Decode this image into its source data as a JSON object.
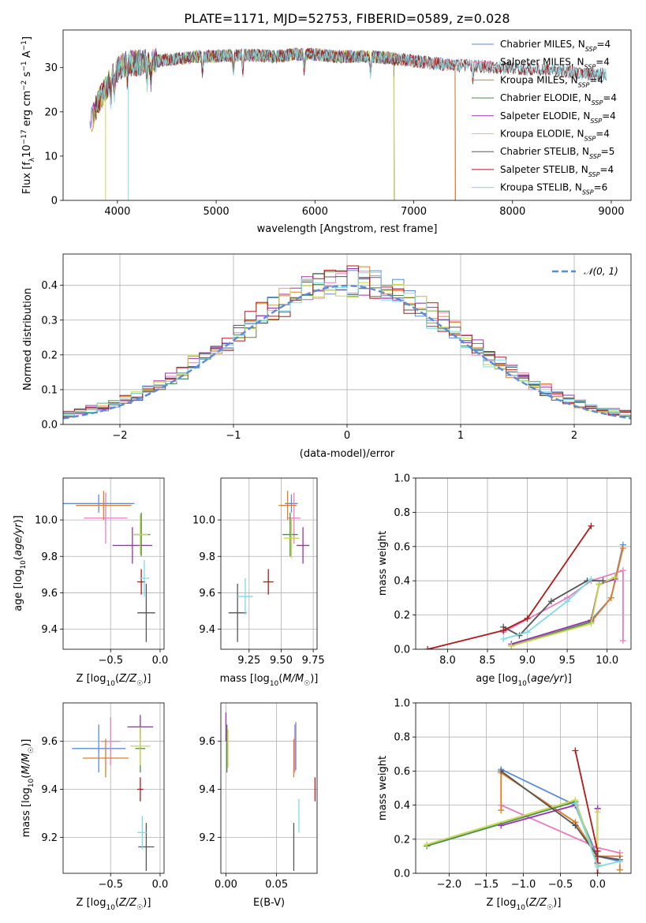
{
  "figure": {
    "title": "PLATE=1171, MJD=52753, FIBERID=0589, z=0.028"
  },
  "chart_data": [
    {
      "id": "spectrum",
      "type": "line",
      "xlabel": "wavelength [Angstrom, rest frame]",
      "ylabel": "Flux [f_λ 10^-17 erg cm^-2 s^-1 A^-1]",
      "xlim": [
        3450,
        9200
      ],
      "ylim": [
        0,
        38.5
      ],
      "xticks": [
        4000,
        5000,
        6000,
        7000,
        8000,
        9000
      ],
      "yticks": [
        0,
        10,
        20,
        30
      ],
      "grid": false,
      "legend_position": "top-right",
      "continuum": {
        "x": [
          3720,
          3800,
          3900,
          4000,
          4100,
          4200,
          4400,
          4600,
          4800,
          5000,
          5200,
          5400,
          5600,
          5800,
          6000,
          6200,
          6400,
          6600,
          6800,
          7000,
          7200,
          7400,
          7600,
          7800,
          8000,
          8200,
          8400,
          8600,
          8800,
          8950
        ],
        "y": [
          17,
          22,
          26,
          29.5,
          31,
          31,
          31.5,
          32,
          32.5,
          32.5,
          32.8,
          32.8,
          32.5,
          33,
          33,
          32.5,
          32.5,
          32.5,
          32,
          31.5,
          31,
          30.5,
          30.5,
          30,
          30,
          29.5,
          29.5,
          29,
          28.5,
          28.5
        ]
      },
      "series": [
        {
          "name": "Chabrier MILES, N_SSP=4",
          "color": "#5b8bd6",
          "xmax": 7420
        },
        {
          "name": "Salpeter MILES, N_SSP=4",
          "color": "#e87ec0",
          "xmax": 7420
        },
        {
          "name": "Kroupa MILES, N_SSP=4",
          "color": "#e07c24",
          "xmax": 7420
        },
        {
          "name": "Chabrier ELODIE, N_SSP=4",
          "color": "#4c8c4a",
          "xmax": 6800
        },
        {
          "name": "Salpeter ELODIE, N_SSP=4",
          "color": "#9b30b0",
          "xmax": 6800
        },
        {
          "name": "Kroupa ELODIE, N_SSP=4",
          "color": "#c6d84a",
          "xmax": 6800
        },
        {
          "name": "Chabrier STELIB, N_SSP=5",
          "color": "#555555",
          "xmax": 8950
        },
        {
          "name": "Salpeter STELIB, N_SSP=4",
          "color": "#b01a1a",
          "xmax": 8950
        },
        {
          "name": "Kroupa STELIB, N_SSP=6",
          "color": "#7fdae6",
          "xmax": 8950
        }
      ]
    },
    {
      "id": "residuals",
      "type": "histogram",
      "xlabel": "(data-model)/error",
      "ylabel": "Normed distribution",
      "xlim": [
        -2.5,
        2.5
      ],
      "ylim": [
        0,
        0.49
      ],
      "xticks": [
        -2,
        -1,
        0,
        1,
        2
      ],
      "yticks": [
        0.0,
        0.1,
        0.2,
        0.3,
        0.4
      ],
      "grid": true,
      "legend_position": "top-right",
      "bin_width": 0.1,
      "reference": {
        "name": "N(0,1)",
        "type": "gaussian",
        "mean": 0,
        "sigma": 1,
        "color": "#5b8bd6"
      },
      "series_colors": [
        "#5b8bd6",
        "#e87ec0",
        "#e07c24",
        "#4c8c4a",
        "#9b30b0",
        "#c6d84a",
        "#555555",
        "#b01a1a",
        "#7fdae6"
      ]
    },
    {
      "id": "age_vs_Z",
      "type": "scatter",
      "xlabel": "Z [log10(Z/Z☉)]",
      "ylabel": "age [log10(age/yr)]",
      "xlim": [
        -0.98,
        0.04
      ],
      "ylim": [
        9.29,
        10.23
      ],
      "xticks": [
        -0.5,
        0.0
      ],
      "yticks": [
        9.4,
        9.6,
        9.8,
        10.0
      ],
      "grid": true,
      "points": [
        {
          "x": -0.62,
          "y": 10.09,
          "xerr": 0.36,
          "yerr": 0.05,
          "color": "#5b8bd6"
        },
        {
          "x": -0.55,
          "y": 10.01,
          "xerr": 0.22,
          "yerr": 0.14,
          "color": "#e87ec0"
        },
        {
          "x": -0.57,
          "y": 10.08,
          "xerr": 0.28,
          "yerr": 0.08,
          "color": "#e07c24"
        },
        {
          "x": -0.19,
          "y": 9.92,
          "xerr": 0.09,
          "yerr": 0.12,
          "color": "#4c8c4a"
        },
        {
          "x": -0.28,
          "y": 9.86,
          "xerr": 0.2,
          "yerr": 0.1,
          "color": "#9b30b0"
        },
        {
          "x": -0.2,
          "y": 9.92,
          "xerr": 0.08,
          "yerr": 0.11,
          "color": "#c6d84a"
        },
        {
          "x": -0.14,
          "y": 9.49,
          "xerr": 0.09,
          "yerr": 0.16,
          "color": "#555555"
        },
        {
          "x": -0.19,
          "y": 9.66,
          "xerr": 0.04,
          "yerr": 0.07,
          "color": "#b01a1a"
        },
        {
          "x": -0.16,
          "y": 9.68,
          "xerr": 0.05,
          "yerr": 0.1,
          "color": "#7fdae6"
        }
      ]
    },
    {
      "id": "age_vs_mass",
      "type": "scatter",
      "xlabel": "mass [log10(M/M☉)]",
      "ylabel": "",
      "xlim": [
        9.03,
        9.78
      ],
      "ylim": [
        9.29,
        10.23
      ],
      "xticks": [
        9.25,
        9.5,
        9.75
      ],
      "yticks": [
        9.4,
        9.6,
        9.8,
        10.0
      ],
      "grid": true,
      "points": [
        {
          "x": 9.58,
          "y": 10.09,
          "xerr": 0.05,
          "yerr": 0.05,
          "color": "#5b8bd6"
        },
        {
          "x": 9.6,
          "y": 10.01,
          "xerr": 0.05,
          "yerr": 0.14,
          "color": "#e87ec0"
        },
        {
          "x": 9.55,
          "y": 10.08,
          "xerr": 0.07,
          "yerr": 0.08,
          "color": "#e07c24"
        },
        {
          "x": 9.57,
          "y": 9.92,
          "xerr": 0.06,
          "yerr": 0.12,
          "color": "#4c8c4a"
        },
        {
          "x": 9.67,
          "y": 9.86,
          "xerr": 0.05,
          "yerr": 0.1,
          "color": "#9b30b0"
        },
        {
          "x": 9.58,
          "y": 9.9,
          "xerr": 0.06,
          "yerr": 0.11,
          "color": "#c6d84a"
        },
        {
          "x": 9.16,
          "y": 9.49,
          "xerr": 0.07,
          "yerr": 0.16,
          "color": "#555555"
        },
        {
          "x": 9.4,
          "y": 9.66,
          "xerr": 0.04,
          "yerr": 0.07,
          "color": "#b01a1a"
        },
        {
          "x": 9.22,
          "y": 9.58,
          "xerr": 0.06,
          "yerr": 0.1,
          "color": "#7fdae6"
        }
      ]
    },
    {
      "id": "weights_vs_age",
      "type": "line",
      "xlabel": "age [log10(age/yr)]",
      "ylabel": "mass weight",
      "xlim": [
        7.6,
        10.3
      ],
      "ylim": [
        0,
        1.0
      ],
      "xticks": [
        8.0,
        8.5,
        9.0,
        9.5,
        10.0
      ],
      "yticks": [
        0.0,
        0.2,
        0.4,
        0.6,
        0.8,
        1.0
      ],
      "grid": true,
      "series": [
        {
          "color": "#5b8bd6",
          "x": [
            8.8,
            9.8,
            10.05,
            10.2
          ],
          "y": [
            0.03,
            0.17,
            0.3,
            0.61
          ]
        },
        {
          "color": "#e87ec0",
          "x": [
            8.7,
            9.5,
            9.8,
            10.2,
            10.2
          ],
          "y": [
            0.1,
            0.3,
            0.4,
            0.46,
            0.05
          ]
        },
        {
          "color": "#e07c24",
          "x": [
            8.8,
            9.8,
            10.05,
            10.2
          ],
          "y": [
            0.02,
            0.16,
            0.3,
            0.59
          ]
        },
        {
          "color": "#4c8c4a",
          "x": [
            8.8,
            9.8,
            9.9,
            10.1
          ],
          "y": [
            0.02,
            0.16,
            0.38,
            0.42
          ]
        },
        {
          "color": "#9b30b0",
          "x": [
            8.8,
            9.8,
            9.9,
            10.1
          ],
          "y": [
            0.03,
            0.17,
            0.38,
            0.41
          ]
        },
        {
          "color": "#c6d84a",
          "x": [
            8.8,
            9.8,
            9.9,
            10.1
          ],
          "y": [
            0.02,
            0.15,
            0.38,
            0.42
          ]
        },
        {
          "color": "#555555",
          "x": [
            8.7,
            8.9,
            9.3,
            9.75,
            9.95
          ],
          "y": [
            0.13,
            0.08,
            0.28,
            0.4,
            0.4
          ]
        },
        {
          "color": "#b01a1a",
          "x": [
            7.75,
            8.7,
            9.0,
            9.8
          ],
          "y": [
            0.0,
            0.11,
            0.18,
            0.72
          ]
        },
        {
          "color": "#7fdae6",
          "x": [
            8.7,
            9.0,
            9.5,
            9.8
          ],
          "y": [
            0.06,
            0.1,
            0.28,
            0.41
          ]
        }
      ]
    },
    {
      "id": "mass_vs_Z",
      "type": "scatter",
      "xlabel": "Z [log10(Z/Z☉)]",
      "ylabel": "mass [log10(M/M☉)]",
      "xlim": [
        -0.98,
        0.04
      ],
      "ylim": [
        9.05,
        9.76
      ],
      "xticks": [
        -0.5,
        0.0
      ],
      "yticks": [
        9.2,
        9.4,
        9.6
      ],
      "grid": true,
      "points": [
        {
          "x": -0.62,
          "y": 9.57,
          "xerr": 0.27,
          "yerr": 0.1,
          "color": "#5b8bd6"
        },
        {
          "x": -0.5,
          "y": 9.6,
          "xerr": 0.1,
          "yerr": 0.1,
          "color": "#e87ec0"
        },
        {
          "x": -0.55,
          "y": 9.53,
          "xerr": 0.23,
          "yerr": 0.08,
          "color": "#e07c24"
        },
        {
          "x": -0.2,
          "y": 9.57,
          "xerr": 0.05,
          "yerr": 0.1,
          "color": "#4c8c4a"
        },
        {
          "x": -0.2,
          "y": 9.66,
          "xerr": 0.13,
          "yerr": 0.05,
          "color": "#9b30b0"
        },
        {
          "x": -0.2,
          "y": 9.58,
          "xerr": 0.1,
          "yerr": 0.08,
          "color": "#c6d84a"
        },
        {
          "x": -0.14,
          "y": 9.16,
          "xerr": 0.08,
          "yerr": 0.1,
          "color": "#555555"
        },
        {
          "x": -0.2,
          "y": 9.4,
          "xerr": 0.03,
          "yerr": 0.05,
          "color": "#b01a1a"
        },
        {
          "x": -0.18,
          "y": 9.22,
          "xerr": 0.05,
          "yerr": 0.07,
          "color": "#7fdae6"
        }
      ]
    },
    {
      "id": "mass_vs_ebv",
      "type": "scatter",
      "xlabel": "E(B-V)",
      "ylabel": "",
      "xlim": [
        -0.005,
        0.09
      ],
      "ylim": [
        9.05,
        9.76
      ],
      "xticks": [
        0.0,
        0.05
      ],
      "yticks": [
        9.2,
        9.4,
        9.6
      ],
      "grid": true,
      "points": [
        {
          "x": 0.069,
          "y": 9.58,
          "xerr": 0,
          "yerr": 0.1,
          "color": "#5b8bd6"
        },
        {
          "x": 0.068,
          "y": 9.57,
          "xerr": 0,
          "yerr": 0.1,
          "color": "#e87ec0"
        },
        {
          "x": 0.067,
          "y": 9.53,
          "xerr": 0,
          "yerr": 0.08,
          "color": "#e07c24"
        },
        {
          "x": 0.001,
          "y": 9.57,
          "xerr": 0,
          "yerr": 0.1,
          "color": "#4c8c4a"
        },
        {
          "x": 0.0,
          "y": 9.66,
          "xerr": 0,
          "yerr": 0.06,
          "color": "#9b30b0"
        },
        {
          "x": 0.002,
          "y": 9.57,
          "xerr": 0,
          "yerr": 0.08,
          "color": "#c6d84a"
        },
        {
          "x": 0.067,
          "y": 9.16,
          "xerr": 0,
          "yerr": 0.1,
          "color": "#555555"
        },
        {
          "x": 0.088,
          "y": 9.4,
          "xerr": 0,
          "yerr": 0.05,
          "color": "#b01a1a"
        },
        {
          "x": 0.072,
          "y": 9.29,
          "xerr": 0,
          "yerr": 0.07,
          "color": "#7fdae6"
        }
      ]
    },
    {
      "id": "weights_vs_Z",
      "type": "line",
      "xlabel": "Z [log10(Z/Z☉)]",
      "ylabel": "mass weight",
      "xlim": [
        -2.45,
        0.45
      ],
      "ylim": [
        0,
        1.0
      ],
      "xticks": [
        -2.0,
        -1.5,
        -1.0,
        -0.5,
        0.0
      ],
      "yticks": [
        0.0,
        0.2,
        0.4,
        0.6,
        0.8,
        1.0
      ],
      "grid": true,
      "series": [
        {
          "color": "#5b8bd6",
          "x": [
            -1.3,
            -0.3,
            0.0,
            0.3
          ],
          "y": [
            0.61,
            0.4,
            0.1,
            0.07
          ]
        },
        {
          "color": "#e87ec0",
          "x": [
            -1.3,
            0.0,
            0.3
          ],
          "y": [
            0.4,
            0.15,
            0.12
          ]
        },
        {
          "color": "#e07c24",
          "x": [
            -1.3,
            -1.3,
            -0.3,
            0.0,
            0.3,
            0.3
          ],
          "y": [
            0.37,
            0.59,
            0.3,
            0.1,
            0.1,
            0.02
          ]
        },
        {
          "color": "#4c8c4a",
          "x": [
            -2.3,
            -0.3,
            0.0,
            0.0
          ],
          "y": [
            0.16,
            0.42,
            0.06,
            0.38
          ]
        },
        {
          "color": "#9b30b0",
          "x": [
            -1.3,
            -0.3,
            0.0,
            0.0
          ],
          "y": [
            0.28,
            0.4,
            0.06,
            0.38
          ]
        },
        {
          "color": "#c6d84a",
          "x": [
            -2.3,
            -0.3,
            0.0,
            0.0
          ],
          "y": [
            0.17,
            0.43,
            0.05,
            0.36
          ]
        },
        {
          "color": "#555555",
          "x": [
            -1.3,
            -0.3,
            0.0,
            0.3
          ],
          "y": [
            0.6,
            0.28,
            0.1,
            0.08
          ]
        },
        {
          "color": "#b01a1a",
          "x": [
            -0.3,
            0.0,
            0.0
          ],
          "y": [
            0.72,
            0.13,
            0.0
          ]
        },
        {
          "color": "#7fdae6",
          "x": [
            -0.3,
            0.0,
            0.3
          ],
          "y": [
            0.41,
            0.04,
            0.07
          ]
        }
      ]
    }
  ]
}
